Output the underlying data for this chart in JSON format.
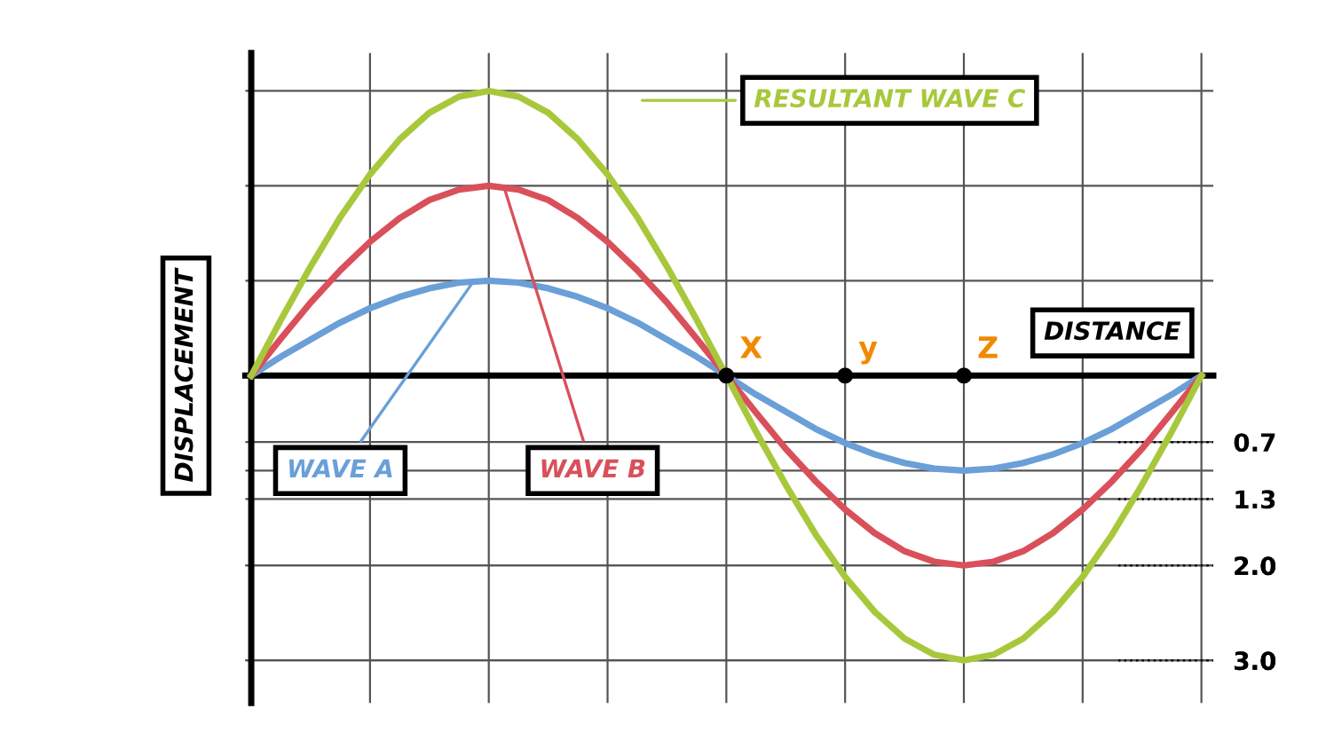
{
  "chart_data": {
    "type": "line",
    "xlabel": "DISTANCE",
    "ylabel": "DISPLACEMENT",
    "categories": [
      null,
      null,
      null,
      null,
      null,
      null,
      null,
      null,
      null,
      null,
      null,
      null,
      null,
      null,
      null,
      null,
      null,
      null,
      null,
      null,
      null,
      null,
      null,
      null,
      null,
      null,
      null,
      null,
      null,
      null,
      null,
      null,
      null
    ],
    "series": [
      {
        "name": "WAVE A",
        "color": "#6a9fd8",
        "values": [
          0,
          0.2,
          0.38,
          0.56,
          0.71,
          0.83,
          0.92,
          0.98,
          1,
          0.98,
          0.92,
          0.83,
          0.71,
          0.56,
          0.38,
          0.2,
          0,
          -0.2,
          -0.38,
          -0.56,
          -0.71,
          -0.83,
          -0.92,
          -0.98,
          -1,
          -0.98,
          -0.92,
          -0.83,
          -0.71,
          -0.56,
          -0.38,
          -0.2,
          0
        ]
      },
      {
        "name": "WAVE B",
        "color": "#d9505a",
        "values": [
          0,
          0.39,
          0.77,
          1.11,
          1.41,
          1.66,
          1.85,
          1.96,
          2,
          1.96,
          1.85,
          1.66,
          1.41,
          1.11,
          0.77,
          0.39,
          0,
          -0.39,
          -0.77,
          -1.11,
          -1.41,
          -1.66,
          -1.85,
          -1.96,
          -2,
          -1.96,
          -1.85,
          -1.66,
          -1.41,
          -1.11,
          -0.77,
          -0.39,
          0
        ]
      },
      {
        "name": "RESULTANT WAVE C",
        "color": "#a8c83c",
        "values": [
          0,
          0.59,
          1.15,
          1.67,
          2.12,
          2.49,
          2.77,
          2.94,
          3,
          2.94,
          2.77,
          2.49,
          2.12,
          1.67,
          1.15,
          0.59,
          0,
          -0.59,
          -1.15,
          -1.67,
          -2.12,
          -2.49,
          -2.77,
          -2.94,
          -3,
          -2.94,
          -2.77,
          -2.49,
          -2.12,
          -1.67,
          -1.15,
          -0.59,
          0
        ]
      },
      {
        "type": "scatter",
        "marker": "circle",
        "color": "#000000",
        "values": [
          null,
          null,
          null,
          null,
          null,
          null,
          null,
          null,
          null,
          null,
          null,
          null,
          null,
          null,
          null,
          null,
          0,
          null,
          null,
          null,
          0,
          null,
          null,
          null,
          0,
          null,
          null,
          null,
          null,
          null,
          null,
          null,
          null
        ]
      }
    ],
    "ylim": [
      -3.45,
      3.4
    ],
    "yticks": [
      {
        "value": -3,
        "label": null
      },
      {
        "value": -2,
        "label": null
      },
      {
        "value": -1,
        "label": null
      },
      {
        "value": 0,
        "label": null
      },
      {
        "value": 1,
        "label": null
      },
      {
        "value": 2,
        "label": null
      },
      {
        "value": 3,
        "label": null
      },
      {
        "value": -0.7,
        "label": "0.7"
      },
      {
        "value": -1.3,
        "label": "1.3"
      },
      {
        "value": -2,
        "label": "2.0"
      },
      {
        "value": -3,
        "label": "3.0"
      }
    ],
    "annotations": [
      "X",
      "y",
      "Z"
    ],
    "ref_lines": [
      {
        "axis": "y",
        "value": -0.7,
        "line_style": "dotted"
      },
      {
        "axis": "y",
        "value": -1.3,
        "line_style": "dotted"
      },
      {
        "axis": "y",
        "value": -2,
        "line_style": "dotted"
      },
      {
        "axis": "y",
        "value": -3,
        "line_style": "dotted"
      }
    ],
    "grid": true,
    "marker": "none",
    "line_style": "solid"
  }
}
